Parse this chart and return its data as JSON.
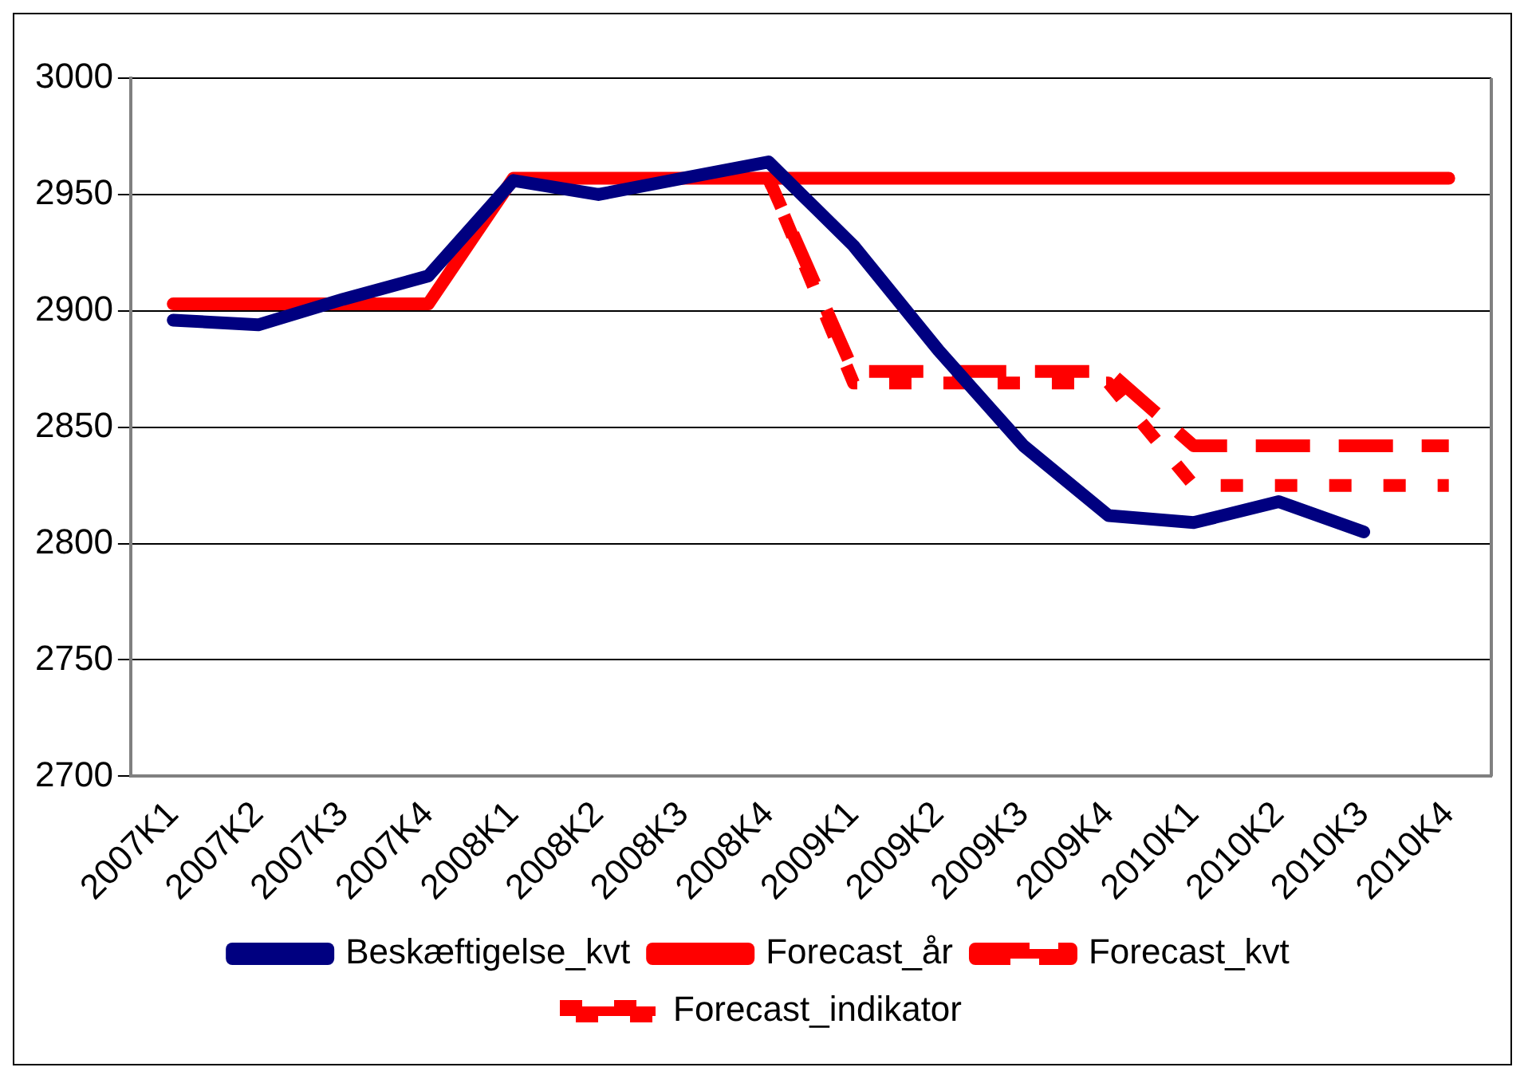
{
  "chart_data": {
    "type": "line",
    "categories": [
      "2007K1",
      "2007K2",
      "2007K3",
      "2007K4",
      "2008K1",
      "2008K2",
      "2008K3",
      "2008K4",
      "2009K1",
      "2009K2",
      "2009K3",
      "2009K4",
      "2010K1",
      "2010K2",
      "2010K3",
      "2010K4"
    ],
    "series": [
      {
        "name": "Beskæftigelse_kvt",
        "color": "#000080",
        "line_style": "solid",
        "values": [
          2896,
          2894,
          2905,
          2915,
          2956,
          2950,
          2957,
          2964,
          2928,
          2883,
          2842,
          2812,
          2809,
          2818,
          2805,
          null
        ]
      },
      {
        "name": "Forecast_år",
        "color": "#ff0000",
        "line_style": "solid",
        "values": [
          2903,
          2903,
          2903,
          2903,
          2957,
          2957,
          2957,
          2957,
          2957,
          2957,
          2957,
          2957,
          2957,
          2957,
          2957,
          2957
        ]
      },
      {
        "name": "Forecast_kvt",
        "color": "#ff0000",
        "line_style": "dashed",
        "values": [
          null,
          null,
          null,
          null,
          null,
          null,
          null,
          2957,
          2874,
          2874,
          2874,
          2874,
          2842,
          2842,
          2842,
          2842
        ]
      },
      {
        "name": "Forecast_indikator",
        "color": "#ff0000",
        "line_style": "dotted",
        "values": [
          null,
          null,
          null,
          null,
          null,
          null,
          null,
          2957,
          2869,
          2869,
          2869,
          2869,
          2825,
          2825,
          2825,
          2825
        ]
      }
    ],
    "ylim": [
      2700,
      3000
    ],
    "yticks": [
      2700,
      2750,
      2800,
      2850,
      2900,
      2950,
      3000
    ],
    "grid": "y",
    "legend": "bottom",
    "marker": "none"
  }
}
